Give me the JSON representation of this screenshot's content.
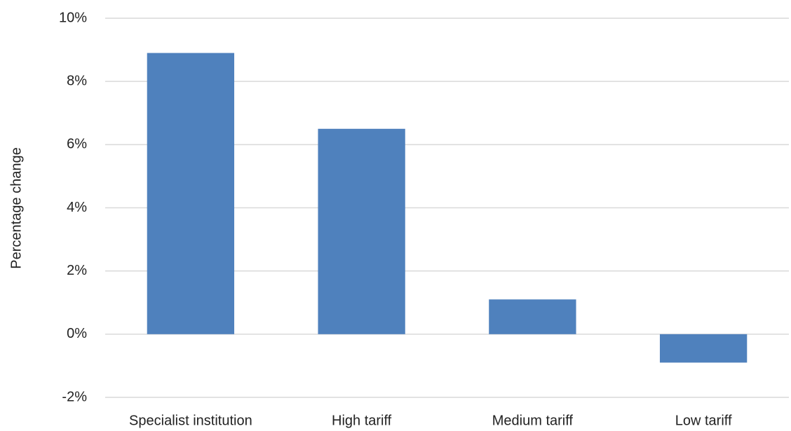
{
  "chart_data": {
    "type": "bar",
    "y_label": "Percentage change",
    "categories": [
      "Specialist institution",
      "High tariff",
      "Medium tariff",
      "Low tariff"
    ],
    "values": [
      8.9,
      6.5,
      1.1,
      -0.9
    ],
    "color": "#4f81bd",
    "ylim": [
      -2,
      10
    ],
    "yticks": [
      {
        "value": -2,
        "label": "-2%"
      },
      {
        "value": 0,
        "label": "0%"
      },
      {
        "value": 2,
        "label": "2%"
      },
      {
        "value": 4,
        "label": "4%"
      },
      {
        "value": 6,
        "label": "6%"
      },
      {
        "value": 8,
        "label": "8%"
      },
      {
        "value": 10,
        "label": "10%"
      }
    ],
    "grid": true
  }
}
